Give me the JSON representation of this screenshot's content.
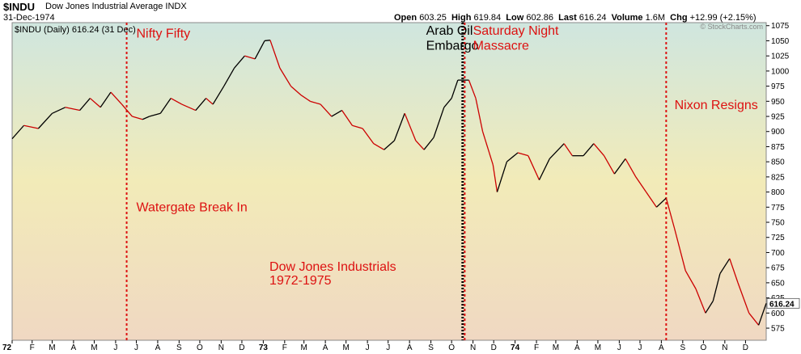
{
  "header": {
    "symbol": "$INDU",
    "name": "Dow Jones Industrial Average",
    "exchange": "INDX",
    "date": "31-Dec-1974",
    "open_label": "Open",
    "open": "603.25",
    "high_label": "High",
    "high": "619.84",
    "low_label": "Low",
    "low": "602.86",
    "last_label": "Last",
    "last": "616.24",
    "volume_label": "Volume",
    "volume": "1.6M",
    "chg_label": "Chg",
    "chg": "+12.99 (+2.15%)",
    "watermark": "© StockCharts.com"
  },
  "legend": {
    "text": "$INDU (Daily) 616.24 (31 Dec)"
  },
  "colors": {
    "background_top": "#cfe6df",
    "background_mid": "#f2ebb8",
    "background_bottom": "#f0d8c2",
    "price_line": "#000000",
    "price_down": "#cc0000",
    "marker_red": "#dd1111",
    "marker_black": "#000000",
    "annotation_red": "#dd1111"
  },
  "chart_data": {
    "type": "line",
    "title": "Dow Jones Industrials 1972-1975",
    "xlabel": "",
    "ylabel": "",
    "ylim": [
      555,
      1080
    ],
    "x_range": [
      "1972-01-03",
      "1974-12-31"
    ],
    "grid": false,
    "y_ticks": [
      575,
      600,
      625,
      650,
      675,
      700,
      725,
      750,
      775,
      800,
      825,
      850,
      875,
      900,
      925,
      950,
      975,
      1000,
      1025,
      1050,
      1075
    ],
    "last_value_label": "616.24",
    "x_tick_labels": [
      "72",
      "F",
      "M",
      "A",
      "M",
      "J",
      "J",
      "A",
      "S",
      "O",
      "N",
      "D",
      "73",
      "F",
      "M",
      "A",
      "M",
      "J",
      "J",
      "A",
      "S",
      "O",
      "N",
      "D",
      "74",
      "F",
      "M",
      "A",
      "M",
      "J",
      "J",
      "A",
      "S",
      "O",
      "N",
      "D"
    ],
    "x_tick_bold": [
      "72",
      "73",
      "74"
    ],
    "series": [
      {
        "x": [
          "1972-01-03",
          "1972-01-20",
          "1972-02-10",
          "1972-03-01",
          "1972-03-20",
          "1972-04-10",
          "1972-04-25",
          "1972-05-10",
          "1972-05-25",
          "1972-06-10",
          "1972-06-25",
          "1972-07-10",
          "1972-07-20",
          "1972-08-05",
          "1972-08-20",
          "1972-09-05",
          "1972-09-25",
          "1972-10-10",
          "1972-10-20",
          "1972-11-05",
          "1972-11-20",
          "1972-12-05",
          "1972-12-20",
          "1973-01-03",
          "1973-01-11",
          "1973-01-25",
          "1973-02-10",
          "1973-02-25",
          "1973-03-10",
          "1973-03-25",
          "1973-04-10",
          "1973-04-25",
          "1973-05-10",
          "1973-05-25",
          "1973-06-10",
          "1973-06-25",
          "1973-07-10",
          "1973-07-25",
          "1973-08-10",
          "1973-08-22",
          "1973-09-05",
          "1973-09-20",
          "1973-10-01",
          "1973-10-10",
          "1973-10-26",
          "1973-11-05",
          "1973-11-15",
          "1973-11-30",
          "1973-12-06",
          "1973-12-20",
          "1974-01-05",
          "1974-01-20",
          "1974-02-05",
          "1974-02-20",
          "1974-03-13",
          "1974-03-25",
          "1974-04-10",
          "1974-04-25",
          "1974-05-10",
          "1974-05-25",
          "1974-06-10",
          "1974-06-25",
          "1974-07-10",
          "1974-07-25",
          "1974-08-08",
          "1974-08-20",
          "1974-09-05",
          "1974-09-20",
          "1974-10-04",
          "1974-10-15",
          "1974-10-25",
          "1974-11-08",
          "1974-11-20",
          "1974-12-06",
          "1974-12-20",
          "1974-12-31"
        ],
        "values": [
          888,
          910,
          905,
          930,
          940,
          935,
          955,
          940,
          965,
          945,
          925,
          920,
          925,
          930,
          955,
          945,
          935,
          955,
          945,
          975,
          1005,
          1025,
          1020,
          1050,
          1051,
          1005,
          975,
          960,
          950,
          945,
          925,
          935,
          910,
          905,
          880,
          870,
          885,
          930,
          885,
          870,
          890,
          940,
          955,
          985,
          985,
          955,
          900,
          845,
          800,
          850,
          865,
          860,
          820,
          855,
          880,
          860,
          860,
          880,
          860,
          830,
          855,
          825,
          800,
          775,
          790,
          740,
          670,
          640,
          600,
          620,
          665,
          690,
          650,
          600,
          580,
          616
        ]
      }
    ],
    "annotations": [
      {
        "text": "Nifty Fifty",
        "x": "1972-07-01",
        "value": 1055
      },
      {
        "text": "Watergate Break In",
        "x": "1972-07-01",
        "value": 768
      },
      {
        "text": "Arab Oil",
        "x": "1973-08-25",
        "value": 1060
      },
      {
        "text": "Embargo",
        "x": "1973-08-25",
        "value": 1035
      },
      {
        "text": "Saturday Night",
        "x": "1973-11-01",
        "value": 1060
      },
      {
        "text": "Massacre",
        "x": "1973-11-01",
        "value": 1035
      },
      {
        "text": "Dow Jones Industrials",
        "x": "1973-01-10",
        "value": 670
      },
      {
        "text": "1972-1975",
        "x": "1973-01-10",
        "value": 647
      },
      {
        "text": "Nixon Resigns",
        "x": "1974-08-20",
        "value": 937
      }
    ],
    "markers": [
      {
        "name": "Watergate Break In",
        "x": "1972-06-17",
        "style": "red-dotted"
      },
      {
        "name": "Arab Oil Embargo",
        "x": "1973-10-17",
        "style": "black-dotted"
      },
      {
        "name": "Saturday Night Massacre",
        "x": "1973-10-20",
        "style": "red-dotted"
      },
      {
        "name": "Nixon Resigns",
        "x": "1974-08-08",
        "style": "red-dotted"
      }
    ]
  }
}
